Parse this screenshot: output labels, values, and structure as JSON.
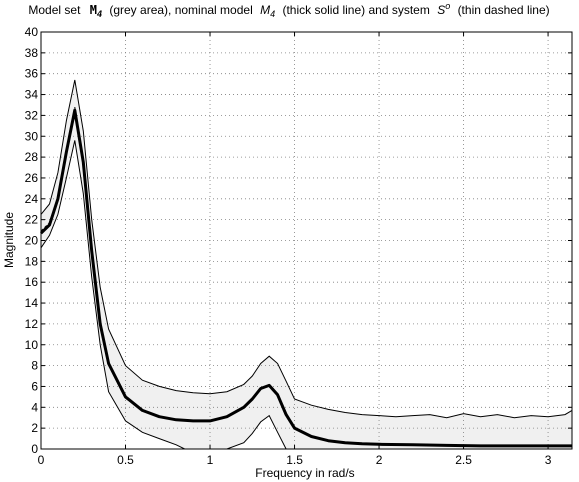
{
  "title": {
    "prefix": "Model set",
    "set_symbol": "M",
    "set_sub": "4",
    "part2": "(grey area), nominal model",
    "model_symbol": "M",
    "model_sub": "4",
    "part3": "(thick solid line) and system",
    "system_symbol": "S",
    "system_sup": "o",
    "part4": "(thin dashed line)"
  },
  "colors": {
    "band_fill": "#f0f0f0",
    "line": "#000000",
    "grid": "#7f7f7f"
  },
  "chart_data": {
    "type": "area",
    "title": "Model set M4 (grey area), nominal model M4 (thick solid line) and system So (thin dashed line)",
    "xlabel": "Frequency in rad/s",
    "ylabel": "Magnitude",
    "xlim": [
      0,
      3.1416
    ],
    "ylim": [
      0,
      40
    ],
    "x_ticks": [
      0,
      0.5,
      1,
      1.5,
      2,
      2.5,
      3
    ],
    "x_tick_labels": [
      "0",
      "0.5",
      "1",
      "1.5",
      "2",
      "2.5",
      "3"
    ],
    "y_ticks": [
      0,
      2,
      4,
      6,
      8,
      10,
      12,
      14,
      16,
      18,
      20,
      22,
      24,
      26,
      28,
      30,
      32,
      34,
      36,
      38,
      40
    ],
    "y_tick_labels": [
      "0",
      "2",
      "4",
      "6",
      "8",
      "10",
      "12",
      "14",
      "16",
      "18",
      "20",
      "22",
      "24",
      "26",
      "28",
      "30",
      "32",
      "34",
      "36",
      "38",
      "40"
    ],
    "grid": true,
    "series": [
      {
        "role": "upper-bound",
        "x": [
          0,
          0.05,
          0.1,
          0.15,
          0.2,
          0.25,
          0.3,
          0.35,
          0.4,
          0.5,
          0.6,
          0.7,
          0.8,
          0.9,
          1.0,
          1.1,
          1.2,
          1.25,
          1.3,
          1.35,
          1.4,
          1.45,
          1.5,
          1.6,
          1.7,
          1.8,
          1.9,
          2.0,
          2.1,
          2.2,
          2.3,
          2.4,
          2.5,
          2.6,
          2.7,
          2.8,
          2.9,
          3.0,
          3.1,
          3.1416
        ],
        "y": [
          22.5,
          23.5,
          26.5,
          31.5,
          35.4,
          30.5,
          22.0,
          15.5,
          11.5,
          8.0,
          6.6,
          6.0,
          5.6,
          5.4,
          5.3,
          5.5,
          6.2,
          7.0,
          8.2,
          8.9,
          8.2,
          6.5,
          4.8,
          4.2,
          3.8,
          3.5,
          3.3,
          3.2,
          3.1,
          3.2,
          3.3,
          3.0,
          3.4,
          3.1,
          3.3,
          3.0,
          3.2,
          3.1,
          3.3,
          3.7
        ]
      },
      {
        "role": "nominal-model",
        "x": [
          0,
          0.05,
          0.1,
          0.15,
          0.2,
          0.25,
          0.3,
          0.35,
          0.4,
          0.5,
          0.6,
          0.7,
          0.8,
          0.9,
          1.0,
          1.1,
          1.2,
          1.25,
          1.3,
          1.35,
          1.4,
          1.45,
          1.5,
          1.6,
          1.7,
          1.8,
          1.9,
          2.0,
          2.2,
          2.4,
          2.6,
          2.8,
          3.0,
          3.1416
        ],
        "y": [
          20.7,
          21.5,
          24.0,
          28.5,
          32.5,
          27.5,
          19.0,
          12.0,
          8.2,
          5.0,
          3.7,
          3.1,
          2.8,
          2.7,
          2.7,
          3.1,
          4.0,
          4.8,
          5.8,
          6.1,
          5.2,
          3.3,
          2.0,
          1.2,
          0.8,
          0.6,
          0.5,
          0.45,
          0.4,
          0.35,
          0.3,
          0.3,
          0.3,
          0.3
        ]
      },
      {
        "role": "lower-bound",
        "x": [
          0,
          0.05,
          0.1,
          0.15,
          0.2,
          0.25,
          0.3,
          0.35,
          0.4,
          0.5,
          0.6,
          0.7,
          0.8,
          0.85,
          0.9,
          1.0,
          1.1,
          1.2,
          1.25,
          1.3,
          1.35,
          1.4,
          1.45
        ],
        "y": [
          19.3,
          20.5,
          22.5,
          26.0,
          29.6,
          24.5,
          16.5,
          10.0,
          5.5,
          2.7,
          1.6,
          1.0,
          0.4,
          0.0,
          0.0,
          0.0,
          0.0,
          0.6,
          1.5,
          2.6,
          3.2,
          1.6,
          0.0
        ]
      },
      {
        "role": "system",
        "x": [
          0,
          0.05,
          0.1,
          0.15,
          0.2,
          0.25,
          0.3,
          0.35,
          0.4,
          0.5,
          0.6,
          0.7,
          0.8,
          0.9,
          1.0,
          1.1,
          1.2,
          1.25,
          1.3,
          1.35,
          1.4,
          1.45,
          1.5,
          1.6,
          1.7,
          1.8,
          1.9,
          2.0,
          2.2,
          2.4,
          2.6,
          2.8,
          3.0,
          3.1416
        ],
        "y": [
          20.9,
          21.7,
          24.2,
          28.8,
          32.8,
          27.6,
          19.0,
          12.0,
          8.2,
          5.0,
          3.7,
          3.1,
          2.8,
          2.7,
          2.7,
          3.1,
          4.0,
          4.8,
          5.8,
          6.1,
          5.2,
          3.3,
          2.0,
          1.2,
          0.8,
          0.6,
          0.5,
          0.45,
          0.4,
          0.35,
          0.3,
          0.3,
          0.3,
          0.3
        ]
      }
    ]
  }
}
